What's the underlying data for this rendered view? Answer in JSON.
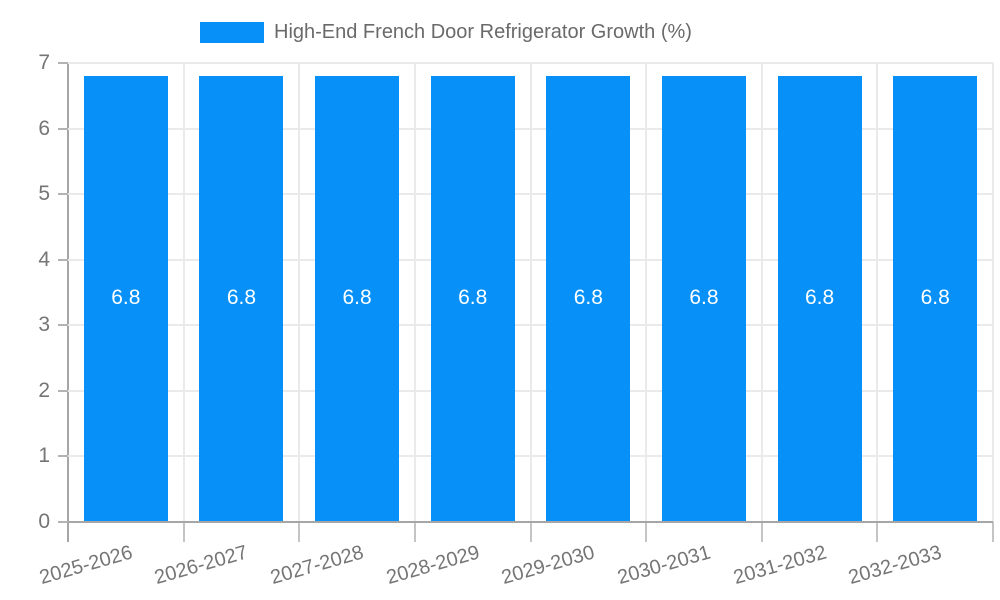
{
  "chart_data": {
    "type": "bar",
    "title": "High-End French Door Refrigerator Growth (%)",
    "legend_label": "High-End French Door Refrigerator Growth (%)",
    "categories": [
      "2025-2026",
      "2026-2027",
      "2027-2028",
      "2028-2029",
      "2029-2030",
      "2030-2031",
      "2031-2032",
      "2032-2033"
    ],
    "values": [
      6.8,
      6.8,
      6.8,
      6.8,
      6.8,
      6.8,
      6.8,
      6.8
    ],
    "value_labels": [
      "6.8",
      "6.8",
      "6.8",
      "6.8",
      "6.8",
      "6.8",
      "6.8",
      "6.8"
    ],
    "xlabel": "",
    "ylabel": "",
    "ylim": [
      0,
      7
    ],
    "yticks": [
      0,
      1,
      2,
      3,
      4,
      5,
      6,
      7
    ],
    "grid": true,
    "legend_position": "top",
    "bar_color": "#0690f8",
    "value_label_color": "#ffffff",
    "axis_text_color": "#757575",
    "legend_text_color": "#6a6a6a",
    "gridline_color": "#eaeaea",
    "axis_line_color": "#a6a6a6",
    "tick_color": "#c4c4c4"
  }
}
